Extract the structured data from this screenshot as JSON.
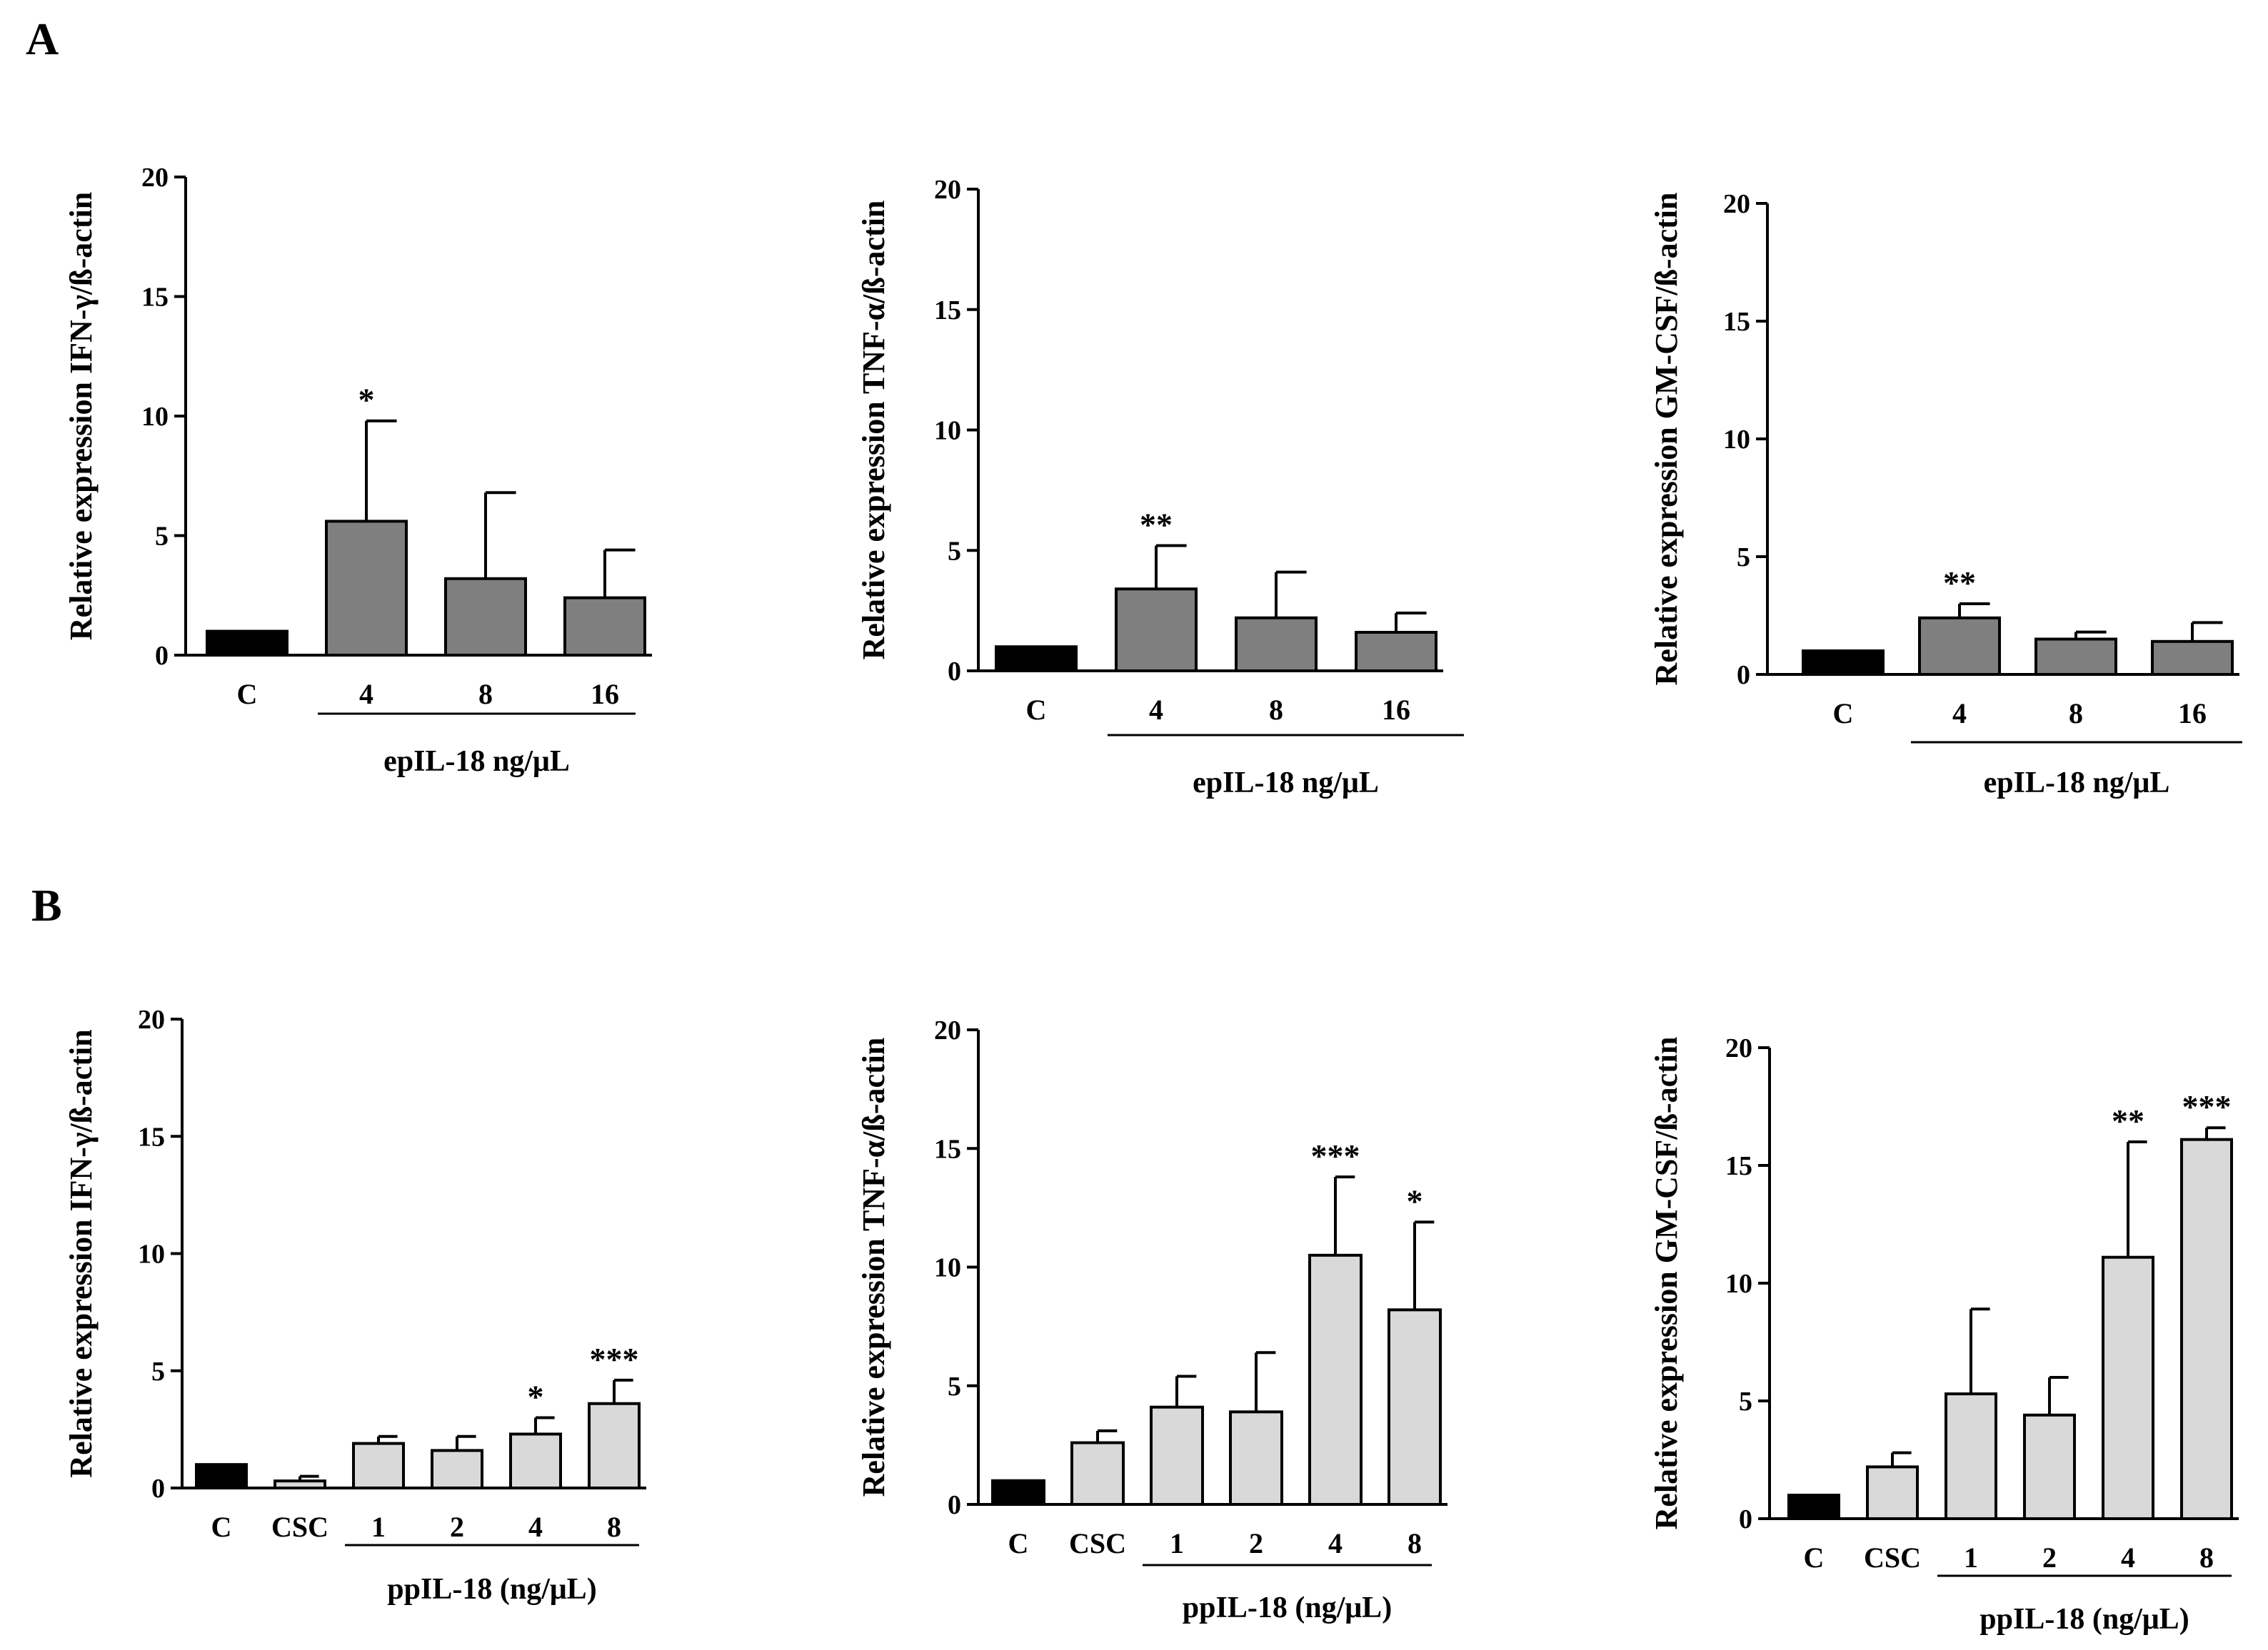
{
  "panels": {
    "A": "A",
    "B": "B"
  },
  "colors": {
    "control": "#000000",
    "dark_gray": "#7f7f7f",
    "light_gray": "#d9d9d9"
  },
  "chart_data": [
    {
      "type": "bar",
      "panel": "A",
      "ylabel": "Relative expression IFN-γ/ß-actin",
      "ylim": [
        0,
        20
      ],
      "yticks": [
        0,
        5,
        10,
        15,
        20
      ],
      "categories": [
        "C",
        "4",
        "8",
        "16"
      ],
      "values": [
        1.0,
        5.6,
        3.2,
        2.4
      ],
      "errors": [
        0,
        4.2,
        3.6,
        2.0
      ],
      "significance": [
        "",
        "*",
        "",
        ""
      ],
      "bar_colors": [
        "control",
        "dark_gray",
        "dark_gray",
        "dark_gray"
      ],
      "group_label": "epIL-18 ng/μL",
      "group_start": 1
    },
    {
      "type": "bar",
      "panel": "A",
      "ylabel": "Relative expression TNF-α/ß-actin",
      "ylim": [
        0,
        20
      ],
      "yticks": [
        0,
        5,
        10,
        15,
        20
      ],
      "categories": [
        "C",
        "4",
        "8",
        "16"
      ],
      "values": [
        1.0,
        3.4,
        2.2,
        1.6
      ],
      "errors": [
        0,
        1.8,
        1.9,
        0.8
      ],
      "significance": [
        "",
        "**",
        "",
        ""
      ],
      "bar_colors": [
        "control",
        "dark_gray",
        "dark_gray",
        "dark_gray"
      ],
      "group_label": "epIL-18 ng/μL",
      "group_start": 1
    },
    {
      "type": "bar",
      "panel": "A",
      "ylabel": "Relative expression GM-CSF/ß-actin",
      "ylim": [
        0,
        20
      ],
      "yticks": [
        0,
        5,
        10,
        15,
        20
      ],
      "categories": [
        "C",
        "4",
        "8",
        "16"
      ],
      "values": [
        1.0,
        2.4,
        1.5,
        1.4
      ],
      "errors": [
        0,
        0.6,
        0.3,
        0.8
      ],
      "significance": [
        "",
        "**",
        "",
        ""
      ],
      "bar_colors": [
        "control",
        "dark_gray",
        "dark_gray",
        "dark_gray"
      ],
      "group_label": "epIL-18 ng/μL",
      "group_start": 1
    },
    {
      "type": "bar",
      "panel": "B",
      "ylabel": "Relative expression IFN-γ/ß-actin",
      "ylim": [
        0,
        20
      ],
      "yticks": [
        0,
        5,
        10,
        15,
        20
      ],
      "categories": [
        "C",
        "CSC",
        "1",
        "2",
        "4",
        "8"
      ],
      "values": [
        1.0,
        0.3,
        1.9,
        1.6,
        2.3,
        3.6
      ],
      "errors": [
        0,
        0.2,
        0.3,
        0.6,
        0.7,
        1.0
      ],
      "significance": [
        "",
        "",
        "",
        "",
        "*",
        "***"
      ],
      "bar_colors": [
        "control",
        "light_gray",
        "light_gray",
        "light_gray",
        "light_gray",
        "light_gray"
      ],
      "group_label": "ppIL-18 (ng/μL)",
      "group_start": 2
    },
    {
      "type": "bar",
      "panel": "B",
      "ylabel": "Relative expression TNF-α/ß-actin",
      "ylim": [
        0,
        20
      ],
      "yticks": [
        0,
        5,
        10,
        15,
        20
      ],
      "categories": [
        "C",
        "CSC",
        "1",
        "2",
        "4",
        "8"
      ],
      "values": [
        1.0,
        2.6,
        4.1,
        3.9,
        10.5,
        8.2
      ],
      "errors": [
        0,
        0.5,
        1.3,
        2.5,
        3.3,
        3.7
      ],
      "significance": [
        "",
        "",
        "",
        "",
        "***",
        "*"
      ],
      "bar_colors": [
        "control",
        "light_gray",
        "light_gray",
        "light_gray",
        "light_gray",
        "light_gray"
      ],
      "group_label": "ppIL-18 (ng/μL)",
      "group_start": 2
    },
    {
      "type": "bar",
      "panel": "B",
      "ylabel": "Relative expression GM-CSF/ß-actin",
      "ylim": [
        0,
        20
      ],
      "yticks": [
        0,
        5,
        10,
        15,
        20
      ],
      "categories": [
        "C",
        "CSC",
        "1",
        "2",
        "4",
        "8"
      ],
      "values": [
        1.0,
        2.2,
        5.3,
        4.4,
        11.1,
        16.1
      ],
      "errors": [
        0,
        0.6,
        3.6,
        1.6,
        4.9,
        0.5
      ],
      "significance": [
        "",
        "",
        "",
        "",
        "**",
        "***"
      ],
      "bar_colors": [
        "control",
        "light_gray",
        "light_gray",
        "light_gray",
        "light_gray",
        "light_gray"
      ],
      "group_label": "ppIL-18 (ng/μL)",
      "group_start": 2
    }
  ]
}
